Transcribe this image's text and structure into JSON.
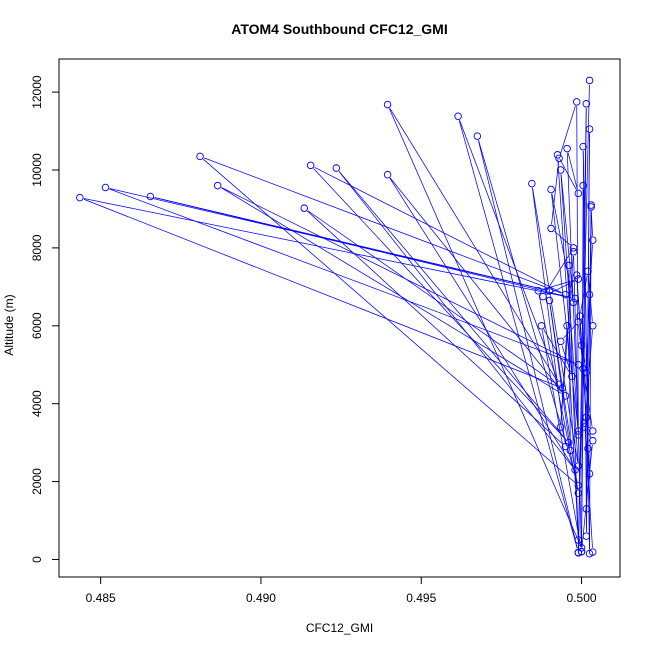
{
  "chart_data": {
    "type": "scatter",
    "title": "ATOM4 Southbound CFC12_GMI",
    "xlabel": "CFC12_GMI",
    "ylabel": "Altitude (m)",
    "xlim": [
      0.4837,
      0.5012
    ],
    "ylim": [
      -450,
      12850
    ],
    "x_ticks": [
      0.485,
      0.49,
      0.495,
      0.5
    ],
    "x_tick_labels": [
      "0.485",
      "0.490",
      "0.495",
      "0.500"
    ],
    "y_ticks": [
      0,
      2000,
      4000,
      6000,
      8000,
      10000,
      12000
    ],
    "y_tick_labels": [
      "0",
      "2000",
      "4000",
      "6000",
      "8000",
      "10000",
      "12000"
    ],
    "grid": false,
    "legend": "none",
    "connected": true,
    "series": [
      {
        "color": "#0000ff",
        "marker": "open-circle",
        "points": [
          [
            0.50025,
            12300
          ],
          [
            0.4999,
            170
          ],
          [
            0.50015,
            11700
          ],
          [
            0.5,
            300
          ],
          [
            0.49395,
            11680
          ],
          [
            0.4993,
            4500
          ],
          [
            0.49615,
            11380
          ],
          [
            0.4999,
            180
          ],
          [
            0.49675,
            10870
          ],
          [
            0.4999,
            1900
          ],
          [
            0.4881,
            10350
          ],
          [
            0.4995,
            6800
          ],
          [
            0.49155,
            10120
          ],
          [
            0.4996,
            3000
          ],
          [
            0.49235,
            10050
          ],
          [
            0.4998,
            2300
          ],
          [
            0.49395,
            9880
          ],
          [
            0.4995,
            4200
          ],
          [
            0.48865,
            9600
          ],
          [
            0.4999,
            5000
          ],
          [
            0.48515,
            9550
          ],
          [
            0.499,
            6900
          ],
          [
            0.48655,
            9320
          ],
          [
            0.4998,
            6700
          ],
          [
            0.48435,
            9290
          ],
          [
            0.4994,
            4400
          ],
          [
            0.49135,
            9020
          ],
          [
            0.4995,
            2900
          ],
          [
            0.49845,
            9650
          ],
          [
            0.4999,
            2400
          ],
          [
            0.49925,
            10390
          ],
          [
            0.4999,
            9400
          ],
          [
            0.49955,
            10550
          ],
          [
            0.4999,
            3300
          ],
          [
            0.49905,
            9500
          ],
          [
            0.49975,
            6600
          ],
          [
            0.49935,
            10000
          ],
          [
            0.4999,
            3200
          ],
          [
            0.49985,
            11750
          ],
          [
            0.4993,
            10300
          ],
          [
            0.49905,
            8500
          ],
          [
            0.49975,
            8000
          ],
          [
            0.4988,
            6750
          ],
          [
            0.4999,
            7200
          ],
          [
            0.49865,
            6900
          ],
          [
            0.4999,
            1700
          ],
          [
            0.499,
            6650
          ],
          [
            0.49965,
            2800
          ],
          [
            0.4996,
            7550
          ],
          [
            0.4999,
            500
          ],
          [
            0.49955,
            6000
          ],
          [
            0.49935,
            3400
          ],
          [
            0.49975,
            7900
          ],
          [
            0.5,
            200
          ],
          [
            0.50005,
            9600
          ],
          [
            0.50015,
            1300
          ],
          [
            0.50025,
            11050
          ],
          [
            0.50015,
            600
          ],
          [
            0.5003,
            9100
          ],
          [
            0.50025,
            150
          ],
          [
            0.50005,
            10600
          ],
          [
            0.5002,
            2850
          ],
          [
            0.5003,
            9050
          ],
          [
            0.50035,
            8200
          ],
          [
            0.50025,
            6800
          ],
          [
            0.50015,
            4800
          ],
          [
            0.5,
            5500
          ],
          [
            0.49985,
            7300
          ],
          [
            0.50015,
            3650
          ],
          [
            0.50025,
            2200
          ],
          [
            0.49995,
            6250
          ],
          [
            0.5002,
            7400
          ],
          [
            0.50035,
            6000
          ],
          [
            0.5001,
            3400
          ],
          [
            0.50035,
            3050
          ],
          [
            0.5,
            200
          ],
          [
            0.49875,
            6000
          ],
          [
            0.4997,
            4700
          ],
          [
            0.49935,
            5600
          ],
          [
            0.4999,
            6100
          ],
          [
            0.50005,
            4900
          ],
          [
            0.50035,
            3300
          ],
          [
            0.5001,
            3500
          ],
          [
            0.50035,
            190
          ]
        ]
      }
    ]
  }
}
